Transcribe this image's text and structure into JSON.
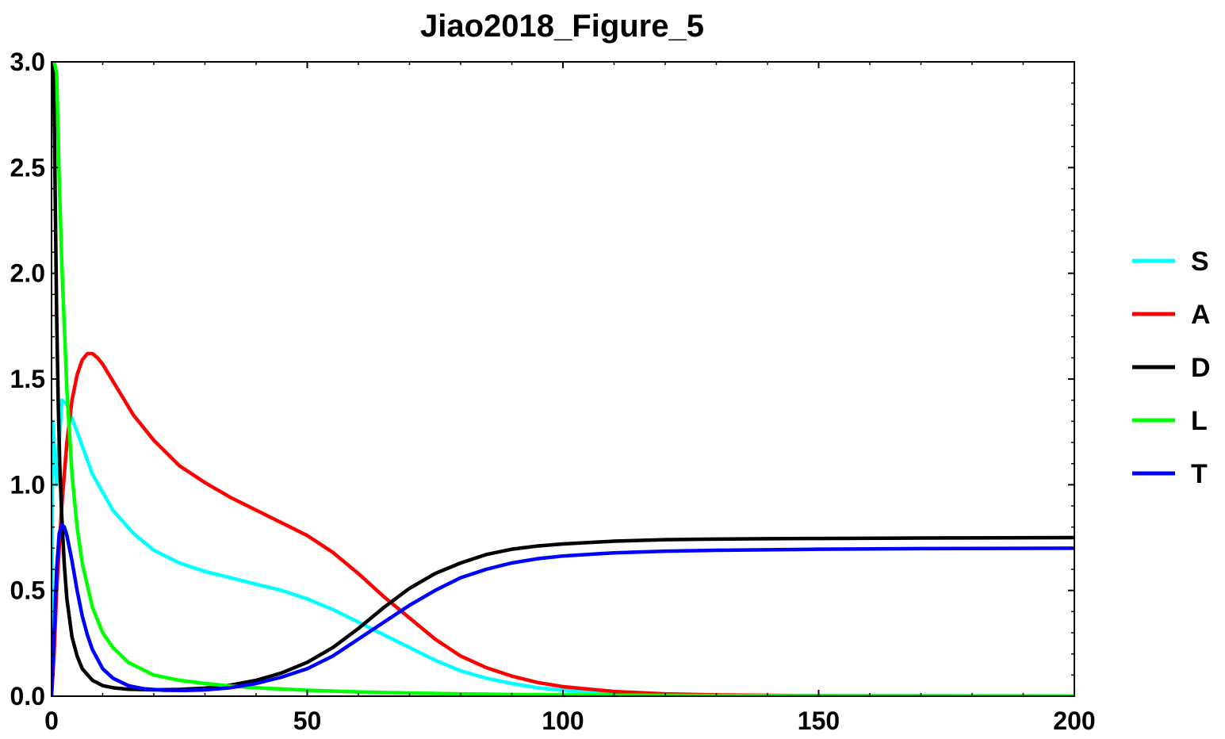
{
  "chart_data": {
    "type": "line",
    "title": "Jiao2018_Figure_5",
    "xlabel": "",
    "ylabel": "",
    "xlim": [
      0,
      200
    ],
    "ylim": [
      0,
      3.0
    ],
    "x_ticks": [
      0,
      50,
      100,
      150,
      200
    ],
    "x_tick_labels": [
      "0",
      "50",
      "100",
      "150",
      "200"
    ],
    "y_ticks": [
      0,
      0.5,
      1.0,
      1.5,
      2.0,
      2.5,
      3.0
    ],
    "y_tick_labels": [
      "0.0",
      "0.5",
      "1.0",
      "1.5",
      "2.0",
      "2.5",
      "3.0"
    ],
    "grid": false,
    "legend_position": "right",
    "series": [
      {
        "name": "S",
        "color": "#00ffff",
        "x": [
          0,
          0.2,
          0.5,
          1,
          1.5,
          2,
          3,
          5,
          8,
          12,
          16,
          20,
          25,
          30,
          35,
          40,
          45,
          50,
          55,
          60,
          65,
          70,
          75,
          80,
          85,
          90,
          95,
          100,
          110,
          120,
          130,
          140,
          150,
          170,
          200
        ],
        "y": [
          0,
          1.3,
          1.2,
          1.0,
          1.2,
          1.4,
          1.38,
          1.25,
          1.05,
          0.88,
          0.77,
          0.69,
          0.63,
          0.59,
          0.56,
          0.53,
          0.5,
          0.46,
          0.41,
          0.35,
          0.29,
          0.23,
          0.17,
          0.12,
          0.085,
          0.06,
          0.04,
          0.028,
          0.014,
          0.008,
          0.005,
          0.003,
          0.002,
          0.001,
          0.0
        ]
      },
      {
        "name": "A",
        "color": "#ff0000",
        "x": [
          0,
          0.5,
          1,
          2,
          3,
          4,
          5,
          6,
          7,
          8,
          9,
          10,
          12,
          14,
          16,
          20,
          25,
          30,
          35,
          40,
          45,
          50,
          55,
          60,
          65,
          70,
          75,
          80,
          85,
          90,
          95,
          100,
          110,
          120,
          130,
          150,
          200
        ],
        "y": [
          0,
          0.2,
          0.5,
          0.9,
          1.2,
          1.4,
          1.52,
          1.59,
          1.62,
          1.62,
          1.6,
          1.57,
          1.49,
          1.41,
          1.33,
          1.21,
          1.09,
          1.01,
          0.94,
          0.88,
          0.82,
          0.76,
          0.68,
          0.58,
          0.47,
          0.37,
          0.27,
          0.19,
          0.135,
          0.095,
          0.065,
          0.045,
          0.022,
          0.011,
          0.006,
          0.002,
          0.0
        ]
      },
      {
        "name": "D",
        "color": "#000000",
        "x": [
          0,
          0.2,
          0.4,
          0.6,
          0.8,
          1,
          1.3,
          1.6,
          2,
          2.5,
          3,
          4,
          5,
          6,
          8,
          10,
          12,
          15,
          20,
          25,
          30,
          35,
          40,
          45,
          50,
          55,
          60,
          65,
          70,
          75,
          80,
          85,
          90,
          95,
          100,
          110,
          120,
          130,
          140,
          150,
          170,
          200
        ],
        "y": [
          3.0,
          3.0,
          3.0,
          2.6,
          2.2,
          1.8,
          1.4,
          1.1,
          0.85,
          0.62,
          0.46,
          0.28,
          0.19,
          0.13,
          0.075,
          0.05,
          0.04,
          0.033,
          0.03,
          0.032,
          0.038,
          0.052,
          0.075,
          0.11,
          0.16,
          0.23,
          0.32,
          0.42,
          0.51,
          0.58,
          0.63,
          0.67,
          0.695,
          0.71,
          0.72,
          0.733,
          0.74,
          0.743,
          0.745,
          0.746,
          0.748,
          0.75
        ]
      },
      {
        "name": "L",
        "color": "#00ff00",
        "x": [
          0.5,
          1,
          1.5,
          2,
          3,
          4,
          5,
          6,
          8,
          10,
          12,
          15,
          20,
          25,
          30,
          35,
          40,
          50,
          60,
          70,
          80,
          90,
          100,
          120,
          150,
          200
        ],
        "y": [
          3.0,
          2.95,
          2.45,
          2.05,
          1.45,
          1.05,
          0.8,
          0.63,
          0.42,
          0.3,
          0.23,
          0.16,
          0.1,
          0.075,
          0.06,
          0.048,
          0.04,
          0.028,
          0.02,
          0.015,
          0.011,
          0.008,
          0.006,
          0.004,
          0.002,
          0.001
        ]
      },
      {
        "name": "T",
        "color": "#0000ff",
        "x": [
          0,
          0.5,
          1,
          1.5,
          2,
          2.5,
          3,
          4,
          5,
          6,
          7,
          8,
          10,
          12,
          15,
          18,
          22,
          26,
          30,
          35,
          40,
          45,
          50,
          55,
          60,
          65,
          70,
          75,
          80,
          85,
          90,
          95,
          100,
          110,
          120,
          130,
          150,
          170,
          200
        ],
        "y": [
          0,
          0.3,
          0.6,
          0.77,
          0.81,
          0.8,
          0.76,
          0.64,
          0.5,
          0.38,
          0.29,
          0.22,
          0.13,
          0.085,
          0.05,
          0.035,
          0.028,
          0.027,
          0.03,
          0.04,
          0.06,
          0.09,
          0.13,
          0.19,
          0.27,
          0.35,
          0.43,
          0.5,
          0.56,
          0.6,
          0.63,
          0.65,
          0.663,
          0.678,
          0.686,
          0.69,
          0.695,
          0.698,
          0.7
        ]
      }
    ]
  }
}
